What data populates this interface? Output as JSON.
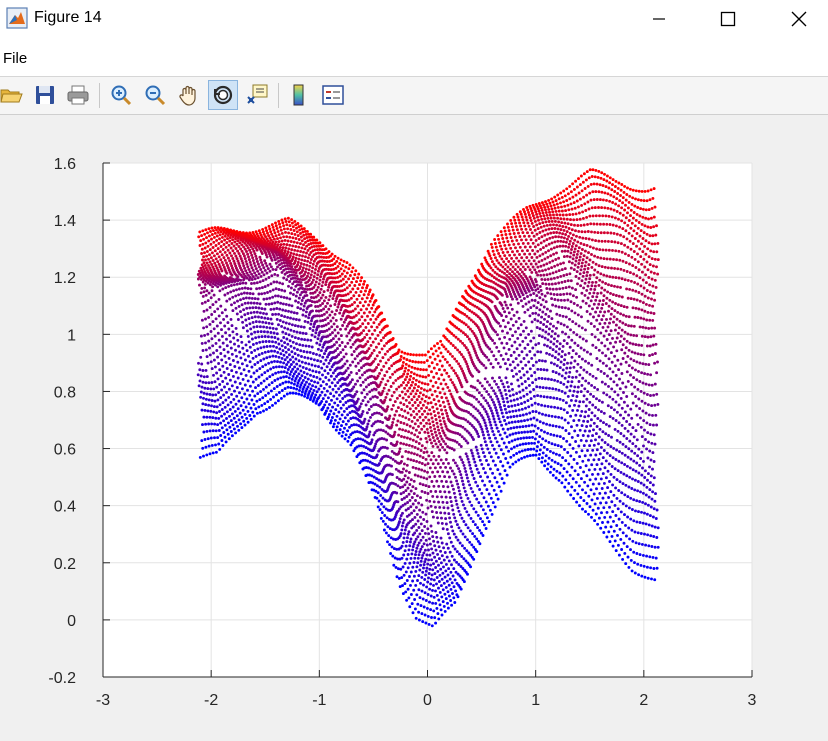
{
  "window": {
    "title": "Figure 14",
    "buttons": [
      "minimize",
      "maximize",
      "close"
    ]
  },
  "menu": {
    "items": [
      "File"
    ]
  },
  "toolbar": {
    "icons": [
      "open-icon",
      "save-icon",
      "print-icon",
      "zoom-in-icon",
      "zoom-out-icon",
      "pan-icon",
      "rotate-3d-icon",
      "data-cursor-icon",
      "colorbar-icon",
      "legend-icon"
    ],
    "active": "rotate-3d-icon"
  },
  "chart_data": {
    "type": "scatter",
    "title": "",
    "xlabel": "",
    "ylabel": "",
    "xlim": [
      -3,
      3
    ],
    "ylim": [
      -0.2,
      1.6
    ],
    "xticks": [
      "-3",
      "-2",
      "-1",
      "0",
      "1",
      "2",
      "3"
    ],
    "yticks": [
      "-0.2",
      "0",
      "0.2",
      "0.4",
      "0.6",
      "0.8",
      "1",
      "1.2",
      "1.4",
      "1.6"
    ],
    "grid": true,
    "colormap": {
      "low": "#0000ff",
      "mid": "#800080",
      "high": "#ff0000"
    },
    "surface": {
      "x_range": [
        -2.1,
        2.1
      ],
      "profiles": [
        {
          "level": 1.0,
          "points": [
            [
              -2.05,
              1.35
            ],
            [
              -1.7,
              1.37
            ],
            [
              -1.3,
              1.39
            ],
            [
              -1.0,
              1.33
            ],
            [
              -0.75,
              1.25
            ],
            [
              -0.5,
              1.12
            ],
            [
              -0.25,
              0.96
            ],
            [
              0.0,
              0.92
            ],
            [
              0.15,
              0.96
            ],
            [
              0.35,
              1.15
            ],
            [
              0.6,
              1.33
            ],
            [
              0.9,
              1.43
            ],
            [
              1.2,
              1.51
            ],
            [
              1.5,
              1.56
            ],
            [
              1.8,
              1.54
            ],
            [
              2.05,
              1.5
            ]
          ]
        },
        {
          "level": 0.5,
          "points": [
            [
              -2.05,
              1.12
            ],
            [
              -1.7,
              1.2
            ],
            [
              -1.4,
              1.22
            ],
            [
              -1.1,
              1.13
            ],
            [
              -0.8,
              0.98
            ],
            [
              -0.5,
              0.78
            ],
            [
              -0.25,
              0.52
            ],
            [
              0.0,
              0.45
            ],
            [
              0.2,
              0.55
            ],
            [
              0.45,
              0.82
            ],
            [
              0.7,
              1.05
            ],
            [
              1.0,
              1.15
            ],
            [
              1.3,
              1.12
            ],
            [
              1.6,
              1.0
            ],
            [
              1.85,
              0.92
            ],
            [
              2.05,
              0.88
            ]
          ]
        },
        {
          "level": 0.0,
          "points": [
            [
              -1.95,
              0.57
            ],
            [
              -1.6,
              0.74
            ],
            [
              -1.3,
              0.78
            ],
            [
              -1.0,
              0.76
            ],
            [
              -0.7,
              0.62
            ],
            [
              -0.45,
              0.4
            ],
            [
              -0.25,
              0.14
            ],
            [
              -0.1,
              0.02
            ],
            [
              0.05,
              -0.03
            ],
            [
              0.25,
              0.05
            ],
            [
              0.5,
              0.32
            ],
            [
              0.75,
              0.53
            ],
            [
              1.0,
              0.57
            ],
            [
              1.25,
              0.5
            ],
            [
              1.45,
              0.38
            ],
            [
              1.7,
              0.27
            ],
            [
              1.9,
              0.19
            ],
            [
              2.1,
              0.14
            ]
          ]
        }
      ]
    }
  }
}
